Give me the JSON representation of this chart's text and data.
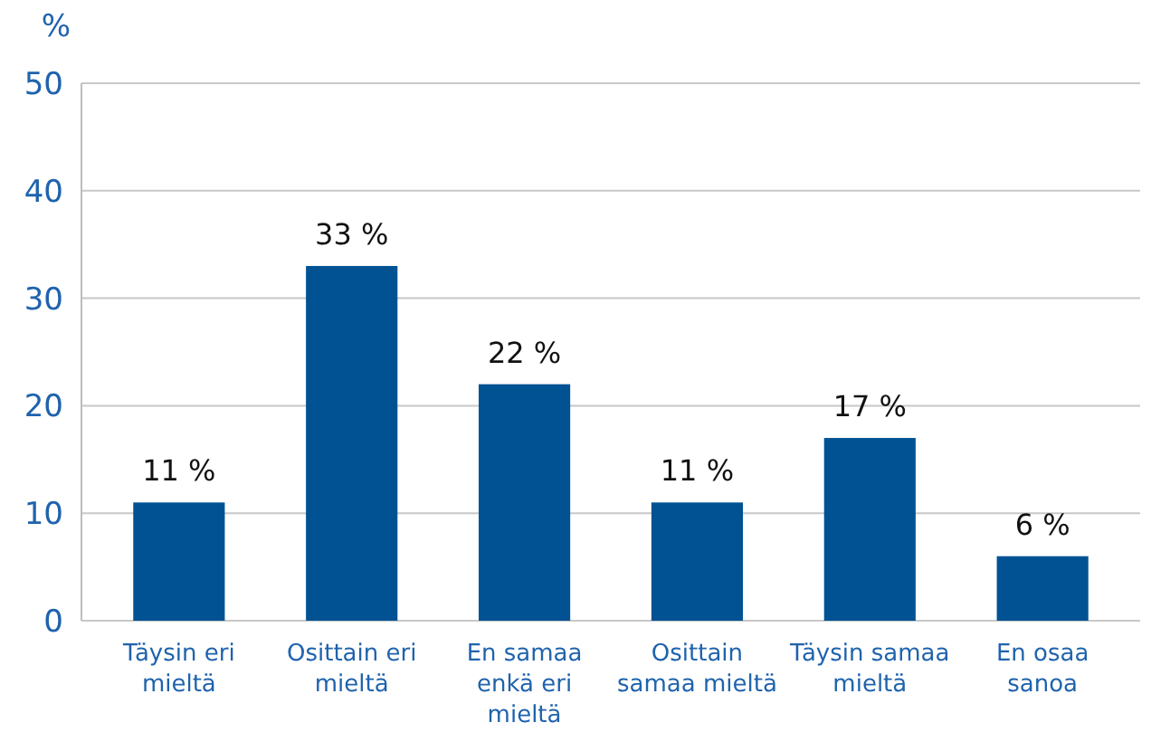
{
  "chart_data": {
    "type": "bar",
    "ylabel": "%",
    "categories": [
      "Täysin eri mieltä",
      "Osittain eri mieltä",
      "En samaa enkä eri mieltä",
      "Osittain samaa mieltä",
      "Täysin samaa mieltä",
      "En osaa sanoa"
    ],
    "values": [
      11,
      33,
      22,
      11,
      17,
      6
    ],
    "color": "#005293",
    "value_labels": [
      "11 %",
      "33 %",
      "22 %",
      "11 %",
      "17 %",
      "6 %"
    ],
    "ylim": [
      0,
      50
    ],
    "yticks": [
      0,
      10,
      20,
      30,
      40,
      50
    ],
    "grid": "y"
  }
}
